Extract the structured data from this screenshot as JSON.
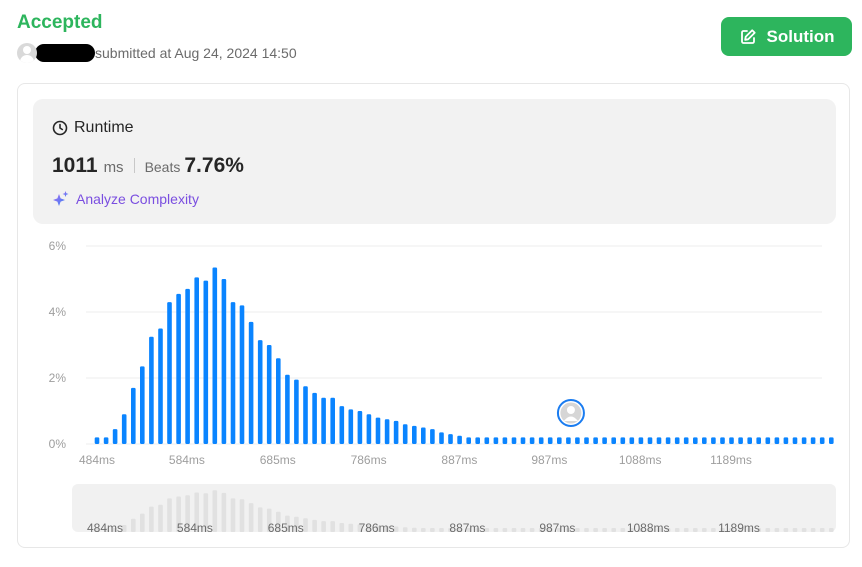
{
  "submission": {
    "status": "Accepted",
    "submitted_text": "submitted at Aug 24, 2024 14:50"
  },
  "toolbar": {
    "solution_label": "Solution",
    "solution_icon": "edit-icon",
    "accent_color": "#2db55d"
  },
  "runtime": {
    "title": "Runtime",
    "title_icon": "clock-icon",
    "value": "1011",
    "unit": "ms",
    "beats_label": "Beats",
    "beats_value": "7.76%",
    "analyze_label": "Analyze Complexity",
    "analyze_icon": "sparkle-icon"
  },
  "chart_data": {
    "type": "bar",
    "bar_color": "#0a84ff",
    "overview_bar_color": "#e1e1e1",
    "y_ticks": [
      "6%",
      "4%",
      "2%",
      "0%"
    ],
    "ylim": [
      0,
      6
    ],
    "x_ticks": [
      "484ms",
      "584ms",
      "685ms",
      "786ms",
      "887ms",
      "987ms",
      "1088ms",
      "1189ms"
    ],
    "x_tick_values": [
      484,
      584,
      685,
      786,
      887,
      987,
      1088,
      1189
    ],
    "x_step_ms": 10.08,
    "values": [
      0.2,
      0.2,
      0.45,
      0.9,
      1.7,
      2.35,
      3.25,
      3.5,
      4.3,
      4.55,
      4.7,
      5.05,
      4.95,
      5.35,
      5.0,
      4.3,
      4.2,
      3.7,
      3.15,
      3.0,
      2.6,
      2.1,
      1.95,
      1.75,
      1.55,
      1.4,
      1.4,
      1.15,
      1.05,
      1.0,
      0.9,
      0.8,
      0.75,
      0.7,
      0.6,
      0.55,
      0.5,
      0.45,
      0.35,
      0.3,
      0.25,
      0.2,
      0.2,
      0.2,
      0.2,
      0.2,
      0.2,
      0.2,
      0.2,
      0.2,
      0.2,
      0.2,
      0.2,
      0.2,
      0.2,
      0.2,
      0.2,
      0.2,
      0.2,
      0.2,
      0.2,
      0.2,
      0.2,
      0.2,
      0.2,
      0.2,
      0.2,
      0.2,
      0.2,
      0.2,
      0.2,
      0.2,
      0.2,
      0.2,
      0.2,
      0.2,
      0.2,
      0.2,
      0.2,
      0.2,
      0.2,
      0.2
    ],
    "user_marker_ms": 1011,
    "grid": true
  }
}
